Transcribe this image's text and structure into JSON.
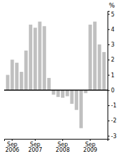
{
  "chart_data": {
    "type": "bar",
    "categories": [
      null,
      "Sep\n2006",
      null,
      null,
      null,
      null,
      "Sep\n2007",
      null,
      null,
      null,
      null,
      null,
      "Sep\n2008",
      null,
      null,
      null,
      null,
      null,
      "Sep\n2009",
      null,
      null,
      null
    ],
    "values": [
      1.0,
      2.0,
      1.8,
      1.2,
      2.6,
      4.3,
      4.1,
      4.5,
      4.2,
      0.8,
      -0.3,
      -0.45,
      -0.5,
      -0.4,
      -0.9,
      -1.3,
      -2.5,
      -0.2,
      4.3,
      4.5,
      3.0,
      2.5
    ],
    "color": "#c0c0c0",
    "y_label": "%",
    "ylim": [
      -3.2,
      5.2
    ],
    "yticks": [
      -3,
      -2,
      -1,
      0,
      1,
      2,
      3,
      4,
      5
    ]
  }
}
